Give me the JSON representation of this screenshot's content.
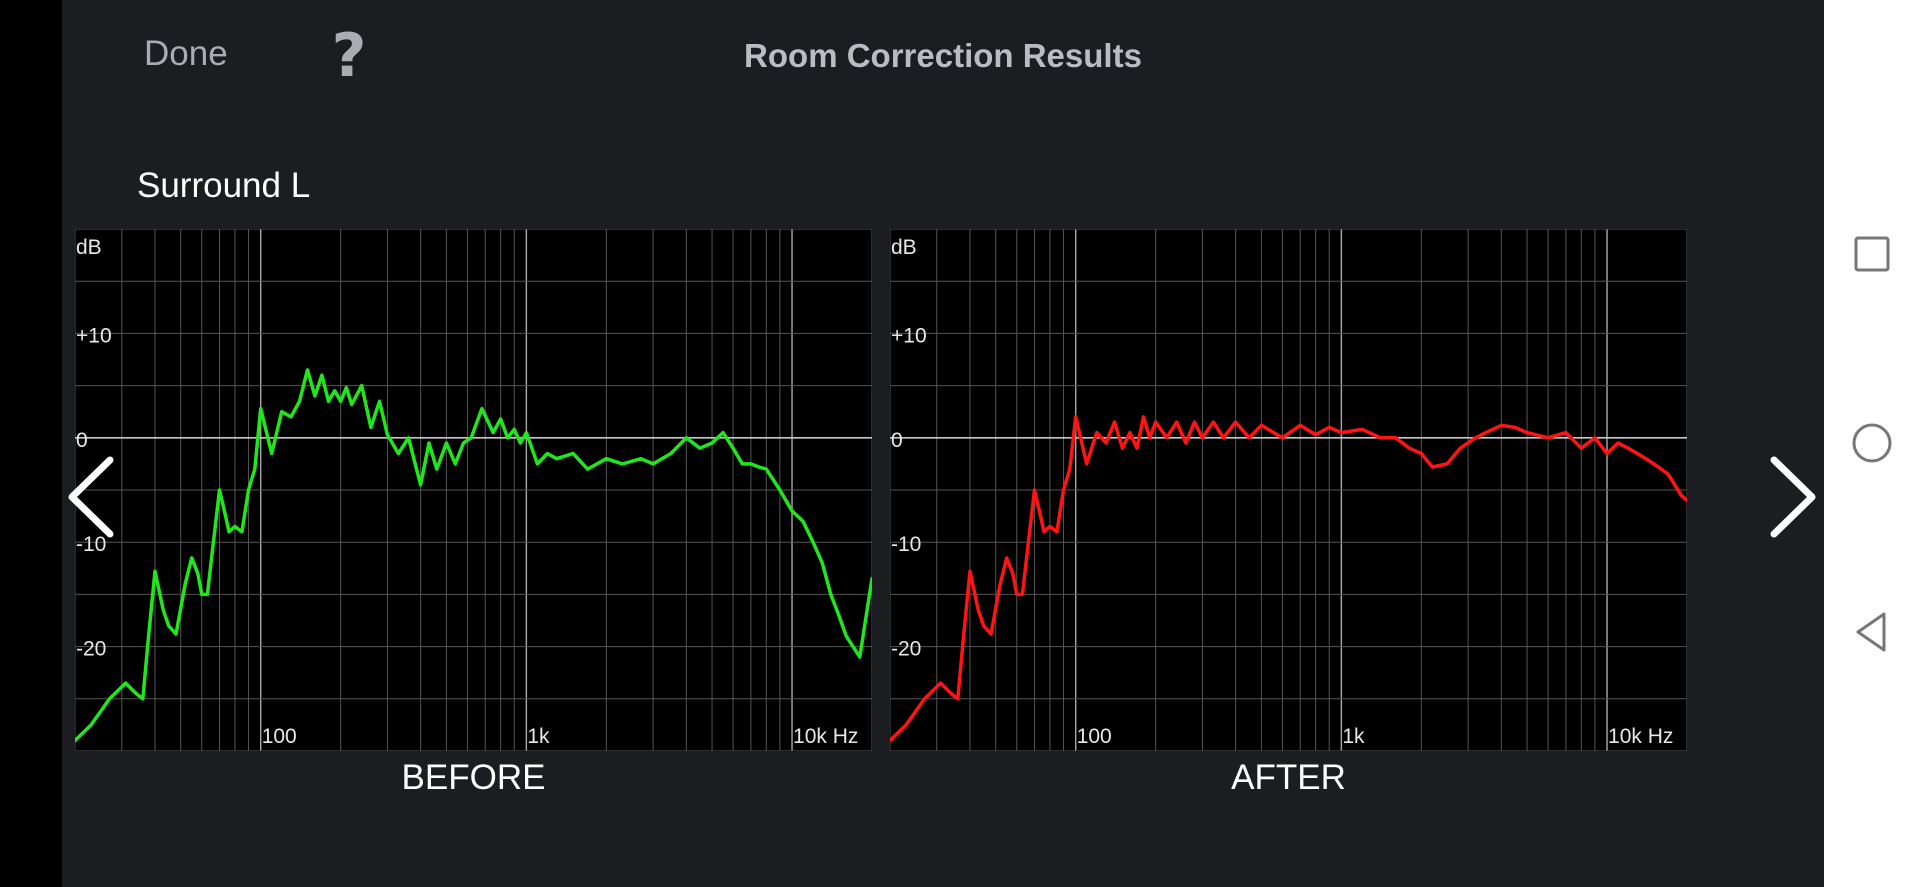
{
  "header": {
    "done_label": "Done",
    "help_label": "?",
    "title": "Room Correction Results"
  },
  "channel": "Surround L",
  "colors": {
    "background": "#1b1d20",
    "before_curve": "#22e61c",
    "after_curve": "#ff1414",
    "grid": "#5a5a5a"
  },
  "icons": {
    "prev": "chevron-left-icon",
    "next": "chevron-right-icon",
    "recent_apps": "square-icon",
    "home": "circle-icon",
    "back": "triangle-back-icon"
  },
  "chart_data": [
    {
      "type": "line",
      "title": "BEFORE",
      "xlabel": "",
      "ylabel": "dB",
      "x_scale": "log",
      "xlim": [
        20,
        20000
      ],
      "ylim": [
        -30,
        20
      ],
      "grid": true,
      "x_tick_labels": [
        "100",
        "1k",
        "10k Hz"
      ],
      "y_tick_labels": [
        "dB",
        "+10",
        "0",
        "-10",
        "-20"
      ],
      "series": [
        {
          "color": "#22e61c",
          "x": [
            20,
            23,
            27,
            31,
            34,
            36,
            38,
            40,
            43,
            45,
            48,
            52,
            55,
            58,
            60,
            63,
            66,
            70,
            73,
            76,
            80,
            85,
            90,
            95,
            100,
            110,
            120,
            130,
            140,
            150,
            160,
            170,
            180,
            190,
            200,
            210,
            220,
            240,
            260,
            280,
            300,
            330,
            360,
            400,
            430,
            460,
            500,
            540,
            580,
            620,
            680,
            750,
            800,
            850,
            900,
            950,
            1000,
            1100,
            1200,
            1300,
            1500,
            1700,
            2000,
            2300,
            2700,
            3000,
            3500,
            4000,
            4500,
            5000,
            5500,
            6000,
            6500,
            7000,
            7500,
            8000,
            9000,
            10000,
            11000,
            12000,
            13000,
            14000,
            15000,
            16000,
            18000,
            20000
          ],
          "y": [
            -29,
            -27.5,
            -25,
            -23.5,
            -24.5,
            -25,
            -18.5,
            -12.8,
            -16.5,
            -18,
            -18.8,
            -14,
            -11.5,
            -13,
            -15,
            -15,
            -10.5,
            -5,
            -7,
            -9,
            -8.5,
            -9,
            -5,
            -3,
            2.8,
            -1.5,
            2.5,
            2,
            3.5,
            6.5,
            4,
            6,
            3.5,
            4.5,
            3.5,
            4.8,
            3.2,
            5,
            1,
            3.5,
            0.3,
            -1.5,
            0,
            -4.5,
            -0.5,
            -3,
            -0.5,
            -2.5,
            -0.5,
            0,
            2.8,
            0.5,
            1.8,
            0,
            0.8,
            -0.5,
            0.5,
            -2.5,
            -1.5,
            -2,
            -1.5,
            -3,
            -2,
            -2.5,
            -2,
            -2.5,
            -1.5,
            0,
            -1,
            -0.5,
            0.5,
            -1,
            -2.5,
            -2.5,
            -2.8,
            -3,
            -5,
            -7,
            -8,
            -10,
            -12,
            -15,
            -17,
            -19,
            -21,
            -13.5
          ]
        }
      ]
    },
    {
      "type": "line",
      "title": "AFTER",
      "xlabel": "",
      "ylabel": "dB",
      "x_scale": "log",
      "xlim": [
        20,
        20000
      ],
      "ylim": [
        -30,
        20
      ],
      "grid": true,
      "x_tick_labels": [
        "100",
        "1k",
        "10k Hz"
      ],
      "y_tick_labels": [
        "dB",
        "+10",
        "0",
        "-10",
        "-20"
      ],
      "series": [
        {
          "color": "#ff1414",
          "x": [
            20,
            23,
            27,
            31,
            34,
            36,
            38,
            40,
            43,
            45,
            48,
            52,
            55,
            58,
            60,
            63,
            66,
            70,
            73,
            76,
            80,
            85,
            90,
            95,
            100,
            110,
            120,
            130,
            140,
            150,
            160,
            170,
            180,
            190,
            200,
            220,
            240,
            260,
            280,
            300,
            330,
            360,
            400,
            450,
            500,
            600,
            700,
            800,
            900,
            1000,
            1200,
            1400,
            1600,
            1800,
            2000,
            2200,
            2500,
            2800,
            3200,
            3500,
            4000,
            4500,
            5000,
            6000,
            7000,
            8000,
            9000,
            10000,
            11000,
            12000,
            13000,
            14000,
            15000,
            16000,
            17000,
            18000,
            19000,
            20000
          ],
          "y": [
            -29,
            -27.5,
            -25,
            -23.5,
            -24.5,
            -25,
            -18.5,
            -12.8,
            -16.5,
            -18,
            -18.8,
            -14,
            -11.5,
            -13,
            -15,
            -15,
            -10.5,
            -5,
            -7,
            -9,
            -8.5,
            -9,
            -5,
            -3,
            2,
            -2.5,
            0.5,
            -0.5,
            1.5,
            -1,
            0.5,
            -1,
            2,
            0,
            1.5,
            0,
            1.5,
            -0.5,
            1.5,
            0,
            1.5,
            0,
            1.5,
            0,
            1.2,
            0,
            1.2,
            0.3,
            1,
            0.5,
            0.8,
            0,
            0,
            -1,
            -1.5,
            -2.8,
            -2.5,
            -1,
            0,
            0.5,
            1.2,
            1,
            0.5,
            0,
            0.5,
            -1,
            0,
            -1.5,
            -0.5,
            -1,
            -1.5,
            -2,
            -2.5,
            -3,
            -3.5,
            -4.5,
            -5.5,
            -6
          ]
        }
      ]
    }
  ]
}
